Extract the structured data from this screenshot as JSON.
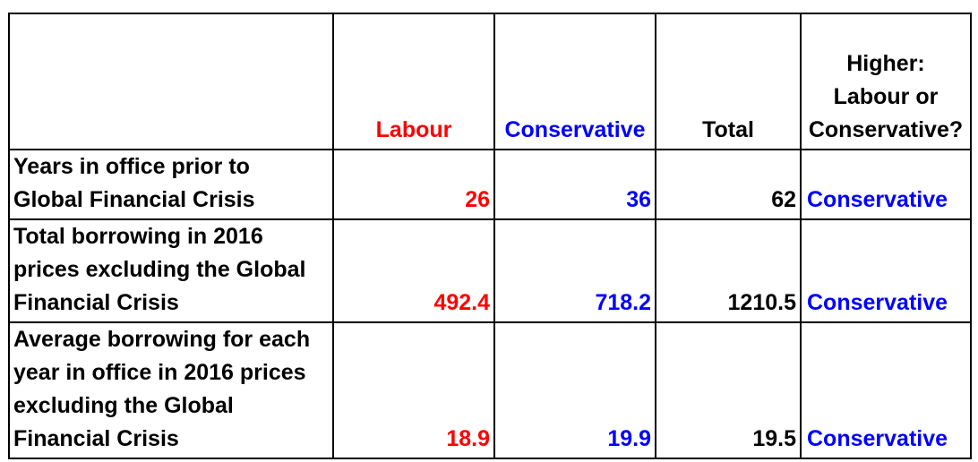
{
  "colors": {
    "labour": "#ff0000",
    "conservative": "#0000ff",
    "text": "#000000"
  },
  "header": {
    "labour": "Labour",
    "conservative": "Conservative",
    "total": "Total",
    "higher": [
      "Higher:",
      "Labour or",
      "Conservative?"
    ]
  },
  "rows": [
    {
      "label": [
        "Years in office prior to",
        "Global Financial Crisis"
      ],
      "labour": "26",
      "conservative": "36",
      "total": "62",
      "higher": "Conservative"
    },
    {
      "label": [
        "Total borrowing in 2016",
        "prices excluding the Global",
        "Financial Crisis"
      ],
      "labour": "492.4",
      "conservative": "718.2",
      "total": "1210.5",
      "higher": "Conservative"
    },
    {
      "label": [
        "Average borrowing for each",
        "year in office in 2016 prices",
        "excluding the Global",
        "Financial Crisis"
      ],
      "labour": "18.9",
      "conservative": "19.9",
      "total": "19.5",
      "higher": "Conservative"
    }
  ]
}
